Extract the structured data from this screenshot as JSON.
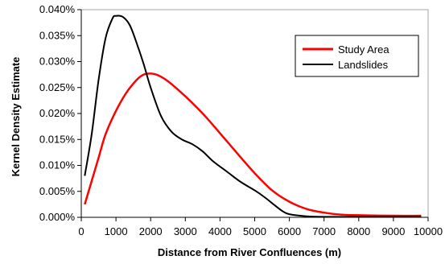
{
  "chart_data": {
    "type": "line",
    "title": "",
    "xlabel": "Distance from River Confluences (m)",
    "ylabel": "Kernel Density Estimate",
    "xlim": [
      0,
      10000
    ],
    "ylim": [
      0,
      0.0004
    ],
    "x_ticks": [
      "0",
      "1000",
      "2000",
      "3000",
      "4000",
      "5000",
      "6000",
      "7000",
      "8000",
      "9000",
      "10000"
    ],
    "y_ticks": [
      "0.000%",
      "0.005%",
      "0.010%",
      "0.015%",
      "0.020%",
      "0.025%",
      "0.030%",
      "0.035%",
      "0.040%"
    ],
    "grid": false,
    "legend_position": "top-right",
    "series": [
      {
        "name": "Study Area",
        "color": "#ff0000",
        "points": [
          [
            100,
            2.5e-05
          ],
          [
            300,
            7e-05
          ],
          [
            500,
            0.000115
          ],
          [
            700,
            0.00016
          ],
          [
            1000,
            0.000205
          ],
          [
            1300,
            0.00024
          ],
          [
            1600,
            0.000265
          ],
          [
            1800,
            0.000275
          ],
          [
            2000,
            0.000277
          ],
          [
            2200,
            0.000274
          ],
          [
            2500,
            0.000262
          ],
          [
            3000,
            0.000233
          ],
          [
            3500,
            0.0002
          ],
          [
            4000,
            0.000162
          ],
          [
            4500,
            0.000123
          ],
          [
            5000,
            8.5e-05
          ],
          [
            5500,
            5.2e-05
          ],
          [
            6000,
            3e-05
          ],
          [
            6500,
            1.6e-05
          ],
          [
            7000,
            9e-06
          ],
          [
            7500,
            5e-06
          ],
          [
            8000,
            4e-06
          ],
          [
            9000,
            3e-06
          ],
          [
            9800,
            3e-06
          ]
        ]
      },
      {
        "name": "Landslides",
        "color": "#000000",
        "points": [
          [
            100,
            8e-05
          ],
          [
            300,
            0.00016
          ],
          [
            500,
            0.000265
          ],
          [
            700,
            0.000345
          ],
          [
            900,
            0.000383
          ],
          [
            1000,
            0.000388
          ],
          [
            1200,
            0.000386
          ],
          [
            1400,
            0.00037
          ],
          [
            1600,
            0.000335
          ],
          [
            1800,
            0.000295
          ],
          [
            2000,
            0.00025
          ],
          [
            2300,
            0.000195
          ],
          [
            2600,
            0.000165
          ],
          [
            2900,
            0.00015
          ],
          [
            3200,
            0.000141
          ],
          [
            3500,
            0.000127
          ],
          [
            3800,
            0.000108
          ],
          [
            4200,
            8.8e-05
          ],
          [
            4600,
            6.8e-05
          ],
          [
            5000,
            5.2e-05
          ],
          [
            5300,
            3.8e-05
          ],
          [
            5600,
            2.2e-05
          ],
          [
            5800,
            1.2e-05
          ],
          [
            6000,
            6e-06
          ],
          [
            6500,
            2e-06
          ],
          [
            7000,
            1e-06
          ],
          [
            8000,
            8e-07
          ],
          [
            9000,
            8e-07
          ],
          [
            9800,
            8e-07
          ]
        ]
      }
    ]
  }
}
